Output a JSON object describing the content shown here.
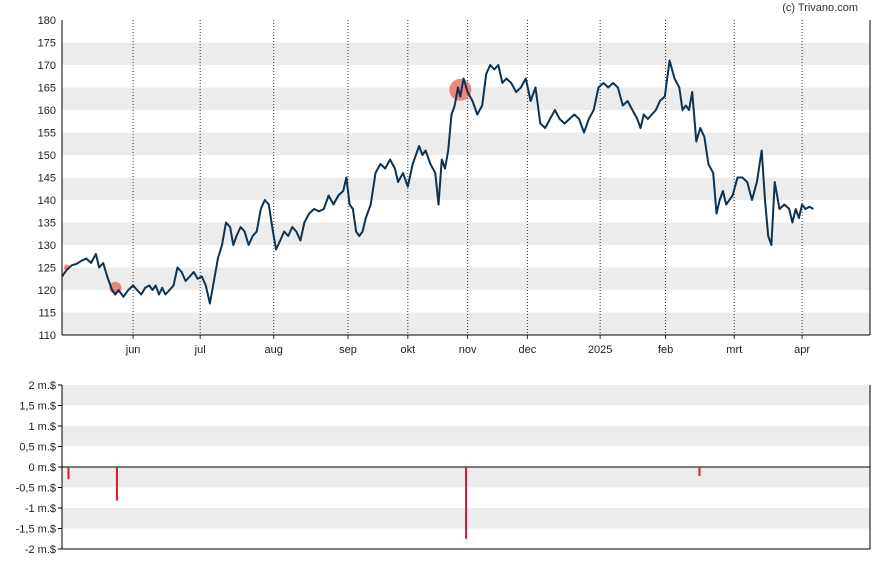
{
  "credit": "(c) Trivano.com",
  "chart_data": [
    {
      "type": "line",
      "title": "",
      "ylim": [
        110,
        180
      ],
      "y_ticks": [
        110,
        115,
        120,
        125,
        130,
        135,
        140,
        145,
        150,
        155,
        160,
        165,
        170,
        175,
        180
      ],
      "x_ticks": [
        {
          "label": "jun",
          "t": 0.088
        },
        {
          "label": "jul",
          "t": 0.171
        },
        {
          "label": "aug",
          "t": 0.262
        },
        {
          "label": "sep",
          "t": 0.354
        },
        {
          "label": "okt",
          "t": 0.428
        },
        {
          "label": "nov",
          "t": 0.502
        },
        {
          "label": "dec",
          "t": 0.576
        },
        {
          "label": "2025",
          "t": 0.666
        },
        {
          "label": "feb",
          "t": 0.747
        },
        {
          "label": "mrt",
          "t": 0.832
        },
        {
          "label": "apr",
          "t": 0.916
        }
      ],
      "grid_bands": true,
      "series": [
        {
          "color": "#0d3351",
          "points": [
            [
              0.0,
              123.0
            ],
            [
              0.006,
              124.5
            ],
            [
              0.012,
              125.5
            ],
            [
              0.018,
              125.8
            ],
            [
              0.024,
              126.5
            ],
            [
              0.03,
              127.0
            ],
            [
              0.036,
              126.0
            ],
            [
              0.042,
              128.0
            ],
            [
              0.046,
              125.0
            ],
            [
              0.051,
              126.0
            ],
            [
              0.056,
              123.0
            ],
            [
              0.062,
              120.0
            ],
            [
              0.066,
              119.0
            ],
            [
              0.07,
              120.0
            ],
            [
              0.076,
              118.5
            ],
            [
              0.082,
              120.0
            ],
            [
              0.088,
              121.0
            ],
            [
              0.093,
              120.0
            ],
            [
              0.098,
              119.0
            ],
            [
              0.103,
              120.5
            ],
            [
              0.108,
              121.0
            ],
            [
              0.112,
              120.0
            ],
            [
              0.116,
              121.0
            ],
            [
              0.12,
              119.0
            ],
            [
              0.124,
              120.5
            ],
            [
              0.128,
              119.0
            ],
            [
              0.133,
              120.0
            ],
            [
              0.138,
              121.0
            ],
            [
              0.143,
              125.0
            ],
            [
              0.148,
              124.0
            ],
            [
              0.153,
              122.0
            ],
            [
              0.158,
              123.0
            ],
            [
              0.163,
              124.0
            ],
            [
              0.168,
              122.5
            ],
            [
              0.173,
              123.0
            ],
            [
              0.178,
              121.0
            ],
            [
              0.183,
              117.0
            ],
            [
              0.188,
              122.0
            ],
            [
              0.193,
              127.0
            ],
            [
              0.198,
              130.0
            ],
            [
              0.203,
              135.0
            ],
            [
              0.208,
              134.0
            ],
            [
              0.212,
              130.0
            ],
            [
              0.216,
              132.0
            ],
            [
              0.221,
              134.0
            ],
            [
              0.226,
              133.0
            ],
            [
              0.231,
              130.0
            ],
            [
              0.236,
              132.0
            ],
            [
              0.241,
              133.0
            ],
            [
              0.246,
              138.0
            ],
            [
              0.251,
              140.0
            ],
            [
              0.256,
              139.0
            ],
            [
              0.261,
              133.0
            ],
            [
              0.265,
              129.0
            ],
            [
              0.27,
              131.0
            ],
            [
              0.275,
              133.0
            ],
            [
              0.28,
              132.0
            ],
            [
              0.285,
              134.0
            ],
            [
              0.29,
              133.0
            ],
            [
              0.295,
              131.0
            ],
            [
              0.3,
              135.0
            ],
            [
              0.306,
              137.0
            ],
            [
              0.312,
              138.0
            ],
            [
              0.318,
              137.5
            ],
            [
              0.324,
              138.0
            ],
            [
              0.33,
              141.0
            ],
            [
              0.336,
              139.0
            ],
            [
              0.342,
              141.0
            ],
            [
              0.348,
              142.0
            ],
            [
              0.352,
              145.0
            ],
            [
              0.356,
              139.0
            ],
            [
              0.36,
              138.0
            ],
            [
              0.364,
              133.0
            ],
            [
              0.368,
              132.0
            ],
            [
              0.372,
              133.0
            ],
            [
              0.376,
              136.0
            ],
            [
              0.382,
              139.0
            ],
            [
              0.388,
              146.0
            ],
            [
              0.394,
              148.0
            ],
            [
              0.4,
              147.0
            ],
            [
              0.406,
              149.0
            ],
            [
              0.412,
              147.0
            ],
            [
              0.416,
              144.0
            ],
            [
              0.422,
              146.0
            ],
            [
              0.428,
              143.0
            ],
            [
              0.434,
              148.0
            ],
            [
              0.438,
              150.0
            ],
            [
              0.442,
              152.0
            ],
            [
              0.446,
              150.0
            ],
            [
              0.45,
              151.0
            ],
            [
              0.456,
              148.0
            ],
            [
              0.462,
              146.0
            ],
            [
              0.466,
              139.0
            ],
            [
              0.47,
              149.0
            ],
            [
              0.474,
              147.0
            ],
            [
              0.478,
              151.0
            ],
            [
              0.482,
              159.0
            ],
            [
              0.486,
              161.0
            ],
            [
              0.49,
              165.0
            ],
            [
              0.493,
              163.0
            ],
            [
              0.497,
              167.0
            ],
            [
              0.502,
              164.0
            ],
            [
              0.508,
              162.0
            ],
            [
              0.514,
              159.0
            ],
            [
              0.52,
              161.0
            ],
            [
              0.525,
              168.0
            ],
            [
              0.53,
              170.0
            ],
            [
              0.535,
              169.0
            ],
            [
              0.54,
              170.0
            ],
            [
              0.545,
              166.0
            ],
            [
              0.55,
              167.0
            ],
            [
              0.556,
              166.0
            ],
            [
              0.562,
              164.0
            ],
            [
              0.568,
              165.0
            ],
            [
              0.574,
              167.0
            ],
            [
              0.58,
              162.0
            ],
            [
              0.586,
              165.0
            ],
            [
              0.592,
              157.0
            ],
            [
              0.598,
              156.0
            ],
            [
              0.604,
              158.0
            ],
            [
              0.61,
              160.0
            ],
            [
              0.616,
              158.0
            ],
            [
              0.622,
              157.0
            ],
            [
              0.628,
              158.0
            ],
            [
              0.634,
              159.0
            ],
            [
              0.64,
              158.0
            ],
            [
              0.646,
              155.0
            ],
            [
              0.652,
              158.0
            ],
            [
              0.658,
              160.0
            ],
            [
              0.664,
              165.0
            ],
            [
              0.67,
              166.0
            ],
            [
              0.676,
              165.0
            ],
            [
              0.682,
              166.0
            ],
            [
              0.688,
              165.0
            ],
            [
              0.694,
              161.0
            ],
            [
              0.7,
              162.0
            ],
            [
              0.706,
              160.0
            ],
            [
              0.712,
              158.0
            ],
            [
              0.716,
              156.0
            ],
            [
              0.72,
              159.0
            ],
            [
              0.725,
              158.0
            ],
            [
              0.73,
              159.0
            ],
            [
              0.735,
              160.0
            ],
            [
              0.74,
              162.0
            ],
            [
              0.746,
              163.0
            ],
            [
              0.752,
              171.0
            ],
            [
              0.758,
              167.0
            ],
            [
              0.764,
              165.0
            ],
            [
              0.768,
              160.0
            ],
            [
              0.772,
              161.0
            ],
            [
              0.776,
              160.0
            ],
            [
              0.78,
              164.0
            ],
            [
              0.785,
              153.0
            ],
            [
              0.79,
              156.0
            ],
            [
              0.795,
              154.0
            ],
            [
              0.8,
              148.0
            ],
            [
              0.806,
              146.0
            ],
            [
              0.81,
              137.0
            ],
            [
              0.814,
              140.0
            ],
            [
              0.818,
              142.0
            ],
            [
              0.822,
              139.0
            ],
            [
              0.826,
              140.0
            ],
            [
              0.83,
              141.0
            ],
            [
              0.836,
              145.0
            ],
            [
              0.842,
              145.0
            ],
            [
              0.848,
              144.0
            ],
            [
              0.854,
              140.0
            ],
            [
              0.86,
              144.0
            ],
            [
              0.866,
              151.0
            ],
            [
              0.87,
              140.0
            ],
            [
              0.874,
              132.0
            ],
            [
              0.878,
              130.0
            ],
            [
              0.882,
              144.0
            ],
            [
              0.888,
              138.0
            ],
            [
              0.894,
              139.0
            ],
            [
              0.9,
              138.0
            ],
            [
              0.904,
              135.0
            ],
            [
              0.908,
              138.0
            ],
            [
              0.912,
              136.0
            ],
            [
              0.916,
              139.0
            ],
            [
              0.92,
              138.0
            ],
            [
              0.925,
              138.5
            ],
            [
              0.93,
              138.0
            ]
          ]
        }
      ],
      "markers": [
        {
          "t": 0.006,
          "y": 125.0,
          "r": 3,
          "color": "#e8736f"
        },
        {
          "t": 0.066,
          "y": 120.5,
          "r": 6,
          "color": "#e8736f"
        },
        {
          "t": 0.493,
          "y": 164.5,
          "r": 11,
          "color": "#e8736f"
        }
      ]
    },
    {
      "type": "bar",
      "title": "",
      "ylim": [
        -2,
        2
      ],
      "y_ticks": [
        {
          "value": 2,
          "label": "2 m.$"
        },
        {
          "value": 1.5,
          "label": "1,5 m.$"
        },
        {
          "value": 1,
          "label": "1 m.$"
        },
        {
          "value": 0.5,
          "label": "0,5 m.$"
        },
        {
          "value": 0,
          "label": "0 m.$"
        },
        {
          "value": -0.5,
          "label": "-0,5 m.$"
        },
        {
          "value": -1,
          "label": "-1 m.$"
        },
        {
          "value": -1.5,
          "label": "-1,5 m.$"
        },
        {
          "value": -2,
          "label": "-2 m.$"
        }
      ],
      "grid_bands": true,
      "bar_color": "#e0182d",
      "bars": [
        {
          "t": 0.008,
          "value": -0.3
        },
        {
          "t": 0.068,
          "value": -0.82
        },
        {
          "t": 0.5,
          "value": -1.75
        },
        {
          "t": 0.789,
          "value": -0.22
        }
      ]
    }
  ]
}
